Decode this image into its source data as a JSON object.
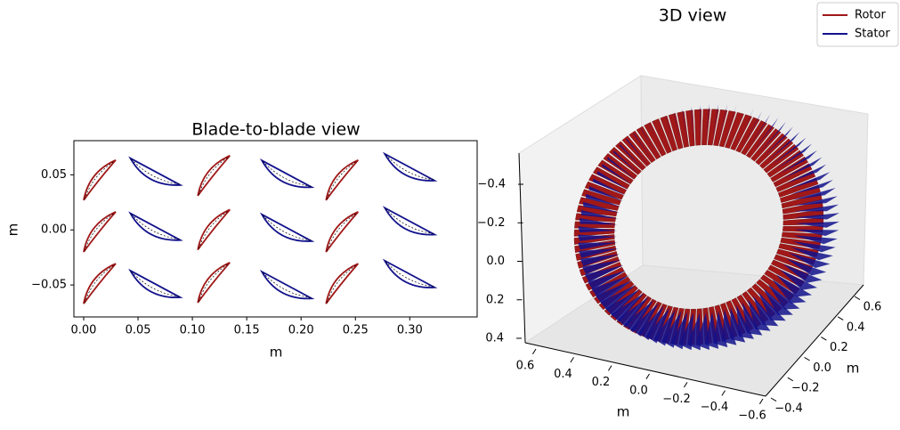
{
  "chart_data": [
    {
      "type": "blades",
      "title": "Blade-to-blade view",
      "x_label": "m",
      "y_label": "m",
      "xlim": [
        -0.009,
        0.362
      ],
      "ylim": [
        -0.079,
        0.081
      ],
      "xticks": [
        {
          "value": 0,
          "label": "0.00"
        },
        0.05,
        {
          "value": 0.1,
          "label": "0.10"
        },
        0.15,
        {
          "value": 0.2,
          "label": "0.20"
        },
        0.25,
        {
          "value": 0.3,
          "label": "0.30"
        }
      ],
      "yticks": [
        {
          "value": -0.05,
          "label": "−0.05"
        },
        {
          "value": 0,
          "label": "0.00"
        },
        0.05
      ],
      "series": [
        {
          "name": "Rotor",
          "color": "#a01818",
          "x": [
            0,
            0,
            0,
            0.105,
            0.105,
            0.105,
            0.223,
            0.223,
            0.223
          ],
          "values": [
            0.027,
            -0.02,
            -0.067,
            0.031,
            -0.018,
            -0.066,
            0.027,
            -0.02,
            -0.067
          ]
        },
        {
          "name": "Stator",
          "color": "#12128c",
          "x": [
            0.043,
            0.043,
            0.043,
            0.164,
            0.164,
            0.164,
            0.277,
            0.277,
            0.277
          ],
          "values": [
            0.065,
            0.015,
            -0.037,
            0.063,
            0.014,
            -0.038,
            0.069,
            0.02,
            -0.028
          ]
        }
      ]
    },
    {
      "type": "ring3d",
      "title": "3D view",
      "x_label": "m",
      "y_label": "m",
      "xlim": [
        0.6,
        -0.6
      ],
      "ylim": [
        -0.4,
        0.6
      ],
      "zlim": [
        -0.4,
        0.4
      ],
      "xticks": [
        0.6,
        0.4,
        0.2,
        {
          "value": 0,
          "label": "0.0"
        },
        {
          "value": -0.2,
          "label": "−0.2"
        },
        {
          "value": -0.4,
          "label": "−0.4"
        },
        {
          "value": -0.6,
          "label": "−0.6"
        }
      ],
      "yticks": [
        {
          "value": -0.4,
          "label": "−0.4"
        },
        {
          "value": -0.2,
          "label": "−0.2"
        },
        {
          "value": 0,
          "label": "0.0"
        },
        0.2,
        0.4,
        0.6
      ],
      "zticks": [
        0.4,
        0.2,
        {
          "value": 0,
          "label": "0.0"
        },
        {
          "value": -0.2,
          "label": "−0.2"
        },
        {
          "value": -0.4,
          "label": "−0.4"
        }
      ]
    }
  ]
}
